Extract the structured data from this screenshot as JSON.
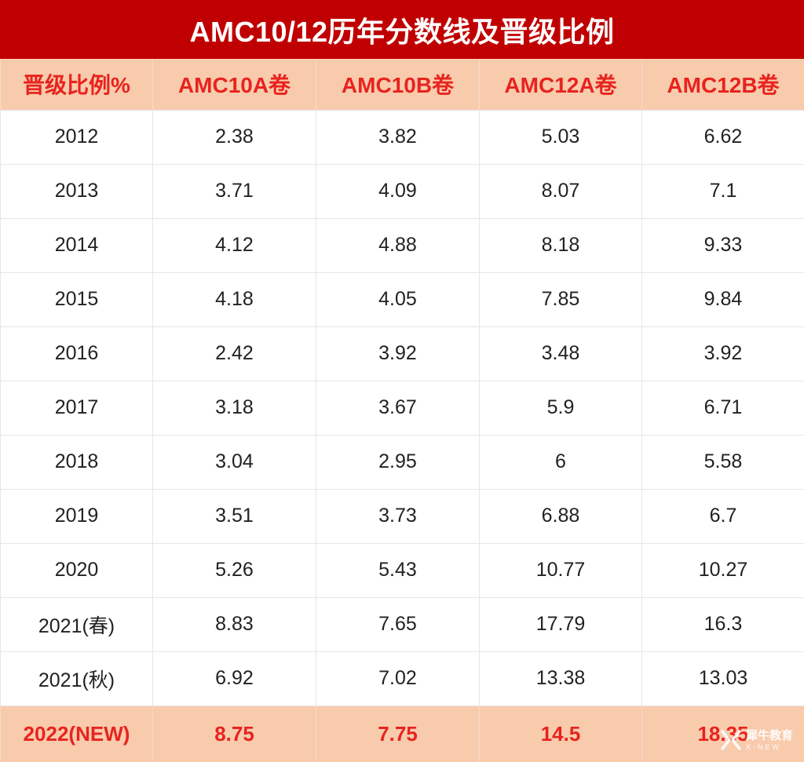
{
  "title": "AMC10/12历年分数线及晋级比例",
  "colors": {
    "title_bg": "#c00000",
    "header_bg": "#f8cbad",
    "header_text": "#e8231e",
    "body_text": "#222222",
    "grid": "#e6e6e6"
  },
  "table": {
    "headers": [
      "晋级比例%",
      "AMC10A卷",
      "AMC10B卷",
      "AMC12A卷",
      "AMC12B卷"
    ],
    "rows": [
      [
        "2012",
        "2.38",
        "3.82",
        "5.03",
        "6.62"
      ],
      [
        "2013",
        "3.71",
        "4.09",
        "8.07",
        "7.1"
      ],
      [
        "2014",
        "4.12",
        "4.88",
        "8.18",
        "9.33"
      ],
      [
        "2015",
        "4.18",
        "4.05",
        "7.85",
        "9.84"
      ],
      [
        "2016",
        "2.42",
        "3.92",
        "3.48",
        "3.92"
      ],
      [
        "2017",
        "3.18",
        "3.67",
        "5.9",
        "6.71"
      ],
      [
        "2018",
        "3.04",
        "2.95",
        "6",
        "5.58"
      ],
      [
        "2019",
        "3.51",
        "3.73",
        "6.88",
        "6.7"
      ],
      [
        "2020",
        "5.26",
        "5.43",
        "10.77",
        "10.27"
      ],
      [
        "2021(春)",
        "8.83",
        "7.65",
        "17.79",
        "16.3"
      ],
      [
        "2021(秋)",
        "6.92",
        "7.02",
        "13.38",
        "13.03"
      ]
    ],
    "highlight_row": [
      "2022(NEW)",
      "8.75",
      "7.75",
      "14.5",
      "18.35"
    ]
  },
  "watermark": {
    "name": "犀牛教育",
    "subtext": "X-NEW",
    "icon": "x-new-logo-icon"
  }
}
